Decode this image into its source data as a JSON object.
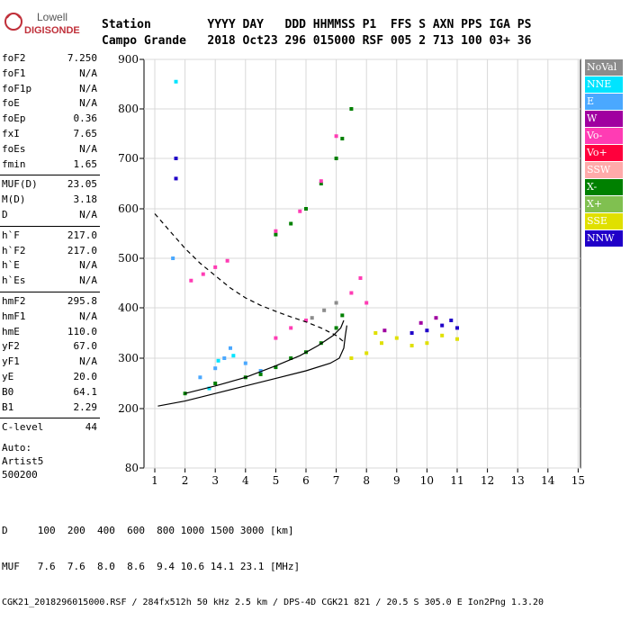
{
  "logo": {
    "line1": "Lowell",
    "line2": "DIGISONDE"
  },
  "header": {
    "row1": "Station        YYYY DAY   DDD HHMMSS P1  FFS S AXN PPS IGA PS",
    "row2": "Campo Grande   2018 Oct23 296 015000 RSF 005 2 713 100 03+ 36"
  },
  "params": [
    {
      "label": "foF2",
      "value": "7.250"
    },
    {
      "label": "foF1",
      "value": "N/A"
    },
    {
      "label": "foF1p",
      "value": "N/A"
    },
    {
      "label": "foE",
      "value": "N/A"
    },
    {
      "label": "foEp",
      "value": "0.36"
    },
    {
      "label": "fxI",
      "value": "7.65"
    },
    {
      "label": "foEs",
      "value": "N/A"
    },
    {
      "label": "fmin",
      "value": "1.65"
    },
    {
      "label": "MUF(D)",
      "value": "23.05"
    },
    {
      "label": "M(D)",
      "value": "3.18"
    },
    {
      "label": "D",
      "value": "N/A"
    },
    {
      "label": "h`F",
      "value": "217.0"
    },
    {
      "label": "h`F2",
      "value": "217.0"
    },
    {
      "label": "h`E",
      "value": "N/A"
    },
    {
      "label": "h`Es",
      "value": "N/A"
    },
    {
      "label": "hmF2",
      "value": "295.8"
    },
    {
      "label": "hmF1",
      "value": "N/A"
    },
    {
      "label": "hmE",
      "value": "110.0"
    },
    {
      "label": "yF2",
      "value": "67.0"
    },
    {
      "label": "yF1",
      "value": "N/A"
    },
    {
      "label": "yE",
      "value": "20.0"
    },
    {
      "label": "B0",
      "value": "64.1"
    },
    {
      "label": "B1",
      "value": "2.29"
    },
    {
      "label": "C-level",
      "value": "44"
    }
  ],
  "auto": {
    "line1": "Auto:",
    "line2": "Artist5",
    "line3": "500200"
  },
  "legend": [
    {
      "label": "NoVal",
      "color": "#8c8c8c"
    },
    {
      "label": "NNE",
      "color": "#00e4ff"
    },
    {
      "label": "E",
      "color": "#4aa8ff"
    },
    {
      "label": "W",
      "color": "#a000a0"
    },
    {
      "label": "Vo-",
      "color": "#ff3cb4"
    },
    {
      "label": "Vo+",
      "color": "#ff003c"
    },
    {
      "label": "SSW",
      "color": "#ffaaaa"
    },
    {
      "label": "X-",
      "color": "#008000"
    },
    {
      "label": "X+",
      "color": "#80c050"
    },
    {
      "label": "SSE",
      "color": "#e0e000"
    },
    {
      "label": "NNW",
      "color": "#2000c8"
    }
  ],
  "chart_data": {
    "type": "scatter",
    "title": "",
    "xlabel": "",
    "ylabel": "",
    "x_ticks": [
      "1",
      "2",
      "3",
      "4",
      "5",
      "6",
      "7",
      "8",
      "9",
      "10",
      "11",
      "12",
      "13",
      "14",
      "15"
    ],
    "y_ticks": [
      "80",
      "200",
      "300",
      "400",
      "500",
      "600",
      "700",
      "800",
      "900"
    ],
    "xlim": [
      1,
      15
    ],
    "ylim": [
      80,
      900
    ],
    "grid": true,
    "legend_position": "right",
    "series": [
      {
        "name": "X-",
        "color": "#008000",
        "points": [
          [
            2.0,
            230
          ],
          [
            3.0,
            250
          ],
          [
            4.0,
            262
          ],
          [
            4.5,
            268
          ],
          [
            5.0,
            282
          ],
          [
            5.5,
            300
          ],
          [
            6.0,
            312
          ],
          [
            6.5,
            330
          ],
          [
            7.0,
            360
          ],
          [
            7.2,
            385
          ],
          [
            5.0,
            548
          ],
          [
            5.5,
            570
          ],
          [
            6.0,
            600
          ],
          [
            6.5,
            650
          ],
          [
            7.0,
            700
          ],
          [
            7.2,
            740
          ],
          [
            7.5,
            800
          ]
        ]
      },
      {
        "name": "Vo-",
        "color": "#ff3cb4",
        "points": [
          [
            2.2,
            455
          ],
          [
            2.6,
            468
          ],
          [
            3.0,
            482
          ],
          [
            3.4,
            495
          ],
          [
            5.0,
            555
          ],
          [
            5.8,
            595
          ],
          [
            6.5,
            655
          ],
          [
            7.0,
            745
          ],
          [
            5.0,
            340
          ],
          [
            5.5,
            360
          ],
          [
            6.0,
            375
          ],
          [
            7.5,
            430
          ],
          [
            7.8,
            460
          ],
          [
            8.0,
            410
          ]
        ]
      },
      {
        "name": "E",
        "color": "#4aa8ff",
        "points": [
          [
            2.5,
            262
          ],
          [
            3.0,
            280
          ],
          [
            3.3,
            300
          ],
          [
            3.5,
            320
          ],
          [
            4.0,
            290
          ],
          [
            4.5,
            275
          ],
          [
            1.6,
            500
          ]
        ]
      },
      {
        "name": "NNE",
        "color": "#00e4ff",
        "points": [
          [
            1.7,
            855
          ],
          [
            2.8,
            240
          ],
          [
            3.1,
            295
          ],
          [
            3.6,
            305
          ]
        ]
      },
      {
        "name": "SSE",
        "color": "#e0e000",
        "points": [
          [
            8.0,
            310
          ],
          [
            8.5,
            330
          ],
          [
            9.0,
            340
          ],
          [
            9.5,
            325
          ],
          [
            10.0,
            330
          ],
          [
            10.5,
            345
          ],
          [
            11.0,
            338
          ],
          [
            7.5,
            300
          ],
          [
            8.3,
            350
          ]
        ]
      },
      {
        "name": "NNW",
        "color": "#2000c8",
        "points": [
          [
            1.7,
            700
          ],
          [
            1.7,
            660
          ],
          [
            10.0,
            355
          ],
          [
            10.5,
            365
          ],
          [
            10.8,
            375
          ],
          [
            11.0,
            360
          ],
          [
            9.5,
            350
          ]
        ]
      },
      {
        "name": "W",
        "color": "#a000a0",
        "points": [
          [
            8.6,
            355
          ],
          [
            9.8,
            370
          ],
          [
            10.3,
            380
          ]
        ]
      },
      {
        "name": "NoVal",
        "color": "#8c8c8c",
        "points": [
          [
            6.2,
            380
          ],
          [
            6.6,
            395
          ],
          [
            7.0,
            410
          ]
        ]
      }
    ],
    "curves": [
      {
        "name": "profile-solid",
        "points": [
          [
            1.1,
            205
          ],
          [
            2,
            215
          ],
          [
            3,
            230
          ],
          [
            4,
            245
          ],
          [
            5,
            260
          ],
          [
            6,
            275
          ],
          [
            6.8,
            290
          ],
          [
            7.1,
            300
          ],
          [
            7.25,
            320
          ],
          [
            7.3,
            345
          ],
          [
            7.35,
            365
          ]
        ]
      },
      {
        "name": "virtual-height",
        "points": [
          [
            2.0,
            230
          ],
          [
            3,
            245
          ],
          [
            4,
            262
          ],
          [
            5,
            285
          ],
          [
            5.8,
            305
          ],
          [
            6.4,
            325
          ],
          [
            6.9,
            345
          ],
          [
            7.15,
            360
          ],
          [
            7.25,
            375
          ]
        ]
      },
      {
        "name": "extraordinary-dashed",
        "points": [
          [
            1.0,
            590
          ],
          [
            1.5,
            555
          ],
          [
            2.0,
            520
          ],
          [
            2.5,
            490
          ],
          [
            3,
            465
          ],
          [
            3.5,
            440
          ],
          [
            4,
            420
          ],
          [
            4.5,
            405
          ],
          [
            5,
            393
          ],
          [
            5.5,
            382
          ],
          [
            6,
            372
          ],
          [
            6.5,
            360
          ],
          [
            7,
            345
          ],
          [
            7.3,
            330
          ]
        ]
      }
    ]
  },
  "footer": {
    "d_row": "D     100  200  400  600  800 1000 1500 3000 [km]",
    "muf_row": "MUF   7.6  7.6  8.0  8.6  9.4 10.6 14.1 23.1 [MHz]",
    "file_row": "CGK21_2018296015000.RSF / 284fx512h 50 kHz 2.5 km / DPS-4D CGK21 821 / 20.5 S 305.0 E Ion2Png 1.3.20"
  }
}
